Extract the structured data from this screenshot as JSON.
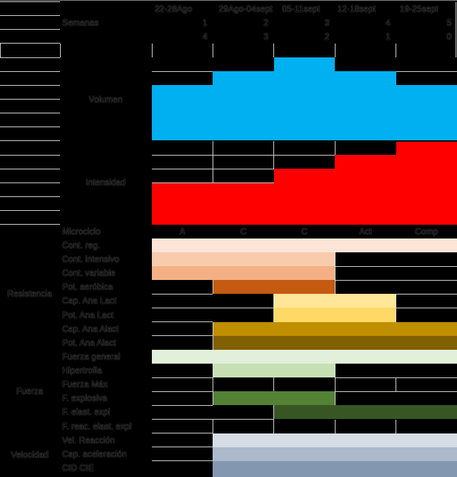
{
  "chart_data": {
    "type": "heatmap",
    "week_header": {
      "dates": [
        "22-28Ago",
        "29Ago-04sept",
        "05-11sept",
        "12-18sept",
        "19-25sept"
      ],
      "semanas_label": "Semanas",
      "week_numbers": [
        "1",
        "2",
        "3",
        "4",
        "5"
      ],
      "weeks_remaining": [
        "4",
        "3",
        "2",
        "1",
        "0"
      ]
    },
    "volumen": {
      "label": "Volumen",
      "color": "#00B0F0",
      "levels": [
        4,
        5,
        6,
        5,
        4
      ],
      "max_levels": 6
    },
    "intensidad": {
      "label": "Intensidad",
      "color": "#FF0000",
      "levels": [
        3,
        3,
        4,
        5,
        6
      ],
      "max_levels": 6
    },
    "microciclo": {
      "label": "Microciclo",
      "values": [
        "A",
        "C",
        "C",
        "Act",
        "Comp"
      ]
    },
    "capacity_groups": [
      {
        "label": "Resistencia",
        "rows": [
          {
            "label": "Cont. reg.",
            "week_start": 1,
            "week_end": 5,
            "color": "#FCE4D6"
          },
          {
            "label": "Cont. intensivo",
            "week_start": 1,
            "week_end": 3,
            "color": "#F8CBAD"
          },
          {
            "label": "Cont. variable",
            "week_start": 1,
            "week_end": 3,
            "color": "#F4B084"
          },
          {
            "label": "Pot. aeróbica",
            "week_start": 2,
            "week_end": 3,
            "color": "#C55A11"
          },
          {
            "label": "Cap. Ana Lact",
            "week_start": 3,
            "week_end": 4,
            "color": "#FFE699"
          },
          {
            "label": "Pot. Ana Lact",
            "week_start": 3,
            "week_end": 4,
            "color": "#FFD966"
          },
          {
            "label": "Cap. Ana Alact",
            "week_start": 2,
            "week_end": 5,
            "color": "#BF8F00"
          },
          {
            "label": "Pot. Ana Alact",
            "week_start": 2,
            "week_end": 5,
            "color": "#806000"
          }
        ]
      },
      {
        "label": "Fuerza",
        "rows": [
          {
            "label": "Fuerza general",
            "week_start": 1,
            "week_end": 5,
            "color": "#E2EFDA"
          },
          {
            "label": "Hipertrofia",
            "week_start": 2,
            "week_end": 3,
            "color": "#C6E0B4"
          },
          {
            "label": "Fuerza Máx",
            "week_start": null,
            "week_end": null,
            "color": null
          },
          {
            "label": "F. explosiva",
            "week_start": 2,
            "week_end": 3,
            "color": "#548235"
          },
          {
            "label": "F. elast. expl",
            "week_start": 3,
            "week_end": 5,
            "color": "#375623"
          },
          {
            "label": "F. reac. elast. expl",
            "week_start": null,
            "week_end": null,
            "color": null
          }
        ]
      },
      {
        "label": "Velocidad",
        "rows": [
          {
            "label": "Vel. Reacción",
            "week_start": 2,
            "week_end": 5,
            "color": "#D6DCE4"
          },
          {
            "label": "Cap. aceleración",
            "week_start": 2,
            "week_end": 5,
            "color": "#ACB9CA"
          },
          {
            "label": "CID CIE",
            "week_start": 2,
            "week_end": 5,
            "color": "#8497B0"
          }
        ]
      }
    ],
    "gridline_color": "#D9D9D9",
    "background": "#000000"
  }
}
